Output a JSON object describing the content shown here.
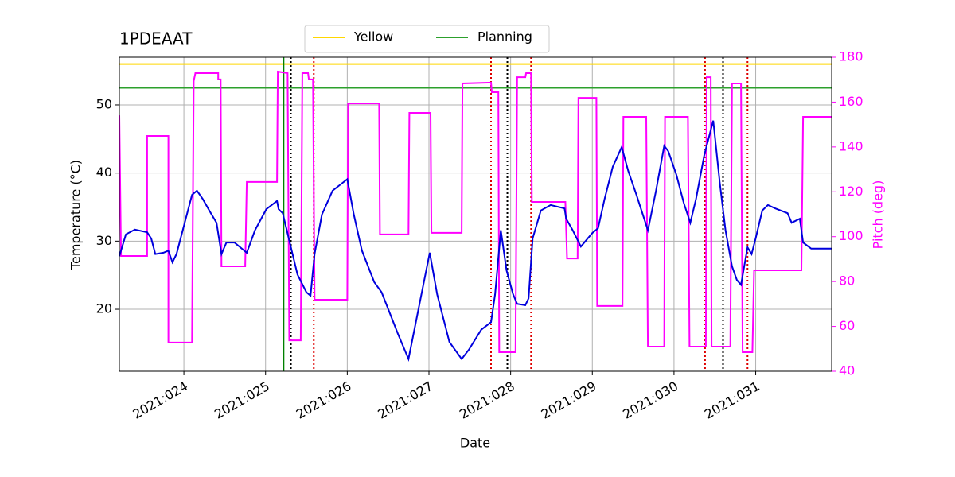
{
  "chart_data": {
    "type": "line",
    "title": "1PDEAAT",
    "x_label": "Date",
    "y_label": "Temperature (°C)",
    "y2_label": "Pitch (deg)",
    "y2_color": "#ff00ff",
    "xlim": [
      23.21,
      31.93
    ],
    "xticks": [
      {
        "value": 24,
        "label": "2021:024"
      },
      {
        "value": 25,
        "label": "2021:025"
      },
      {
        "value": 26,
        "label": "2021:026"
      },
      {
        "value": 27,
        "label": "2021:027"
      },
      {
        "value": 28,
        "label": "2021:028"
      },
      {
        "value": 29,
        "label": "2021:029"
      },
      {
        "value": 30,
        "label": "2021:030"
      },
      {
        "value": 31,
        "label": "2021:031"
      }
    ],
    "ylim": [
      10.9,
      57
    ],
    "yticks": [
      20,
      30,
      40,
      50
    ],
    "y2lim": [
      40,
      180
    ],
    "y2ticks": [
      40,
      60,
      80,
      100,
      120,
      140,
      160,
      180
    ],
    "grid": true,
    "legend": "top",
    "hlines": [
      {
        "name": "Yellow",
        "value": 56,
        "color": "#ffd700"
      },
      {
        "name": "Planning",
        "value": 52.5,
        "color": "#2ca02c"
      }
    ],
    "vlines": [
      {
        "x": 25.22,
        "color": "#008000",
        "style": "solid"
      },
      {
        "x": 25.31,
        "color": "#000000",
        "style": "dotted"
      },
      {
        "x": 27.96,
        "color": "#000000",
        "style": "dotted"
      },
      {
        "x": 30.6,
        "color": "#000000",
        "style": "dotted"
      },
      {
        "x": 25.59,
        "color": "#dd0000",
        "style": "dotted"
      },
      {
        "x": 27.76,
        "color": "#dd0000",
        "style": "dotted"
      },
      {
        "x": 28.25,
        "color": "#dd0000",
        "style": "dotted"
      },
      {
        "x": 30.38,
        "color": "#dd0000",
        "style": "dotted"
      },
      {
        "x": 30.9,
        "color": "#dd0000",
        "style": "dotted"
      }
    ],
    "series": [
      {
        "color": "#ff00ff",
        "axis": "y2",
        "x": [
          23.21,
          23.23,
          23.55,
          23.55,
          23.81,
          23.81,
          24.1,
          24.12,
          24.14,
          24.42,
          24.42,
          24.45,
          24.46,
          24.75,
          24.77,
          25.14,
          25.15,
          25.27,
          25.29,
          25.43,
          25.45,
          25.52,
          25.53,
          25.58,
          25.6,
          26.0,
          26.01,
          26.39,
          26.4,
          26.75,
          26.76,
          27.02,
          27.03,
          27.4,
          27.41,
          27.76,
          27.77,
          27.85,
          27.86,
          28.06,
          28.08,
          28.18,
          28.19,
          28.25,
          28.26,
          28.67,
          28.69,
          28.82,
          28.83,
          29.05,
          29.06,
          29.37,
          29.38,
          29.66,
          29.68,
          29.88,
          29.89,
          30.17,
          30.19,
          30.39,
          30.4,
          30.45,
          30.46,
          30.69,
          30.71,
          30.82,
          30.84,
          30.96,
          30.98,
          31.56,
          31.58,
          31.93
        ],
        "values": [
          154.1,
          91.4,
          91.4,
          144.9,
          144.9,
          52.8,
          52.8,
          169.4,
          172.9,
          172.9,
          170.1,
          170.1,
          86.8,
          86.8,
          124.4,
          124.4,
          173.6,
          172.9,
          53.8,
          53.8,
          172.9,
          172.9,
          170.1,
          170.1,
          71.9,
          71.9,
          159.4,
          159.4,
          101,
          101,
          155.2,
          155.2,
          101.7,
          101.7,
          168.3,
          168.7,
          164.4,
          164.4,
          48.5,
          48.5,
          171.1,
          171.1,
          172.9,
          172.9,
          115.5,
          115.5,
          90.3,
          90.3,
          161.9,
          161.9,
          69.1,
          69.1,
          153.4,
          153.4,
          51,
          51,
          153.4,
          153.4,
          51,
          51,
          171.1,
          171.1,
          51,
          51,
          168.3,
          168.3,
          48.5,
          48.5,
          85,
          85,
          153.4,
          153.4
        ]
      },
      {
        "color": "#0000dd",
        "x": [
          23.21,
          23.29,
          23.4,
          23.55,
          23.6,
          23.65,
          23.75,
          23.81,
          23.86,
          23.91,
          24.01,
          24.1,
          24.16,
          24.23,
          24.33,
          24.4,
          24.46,
          24.52,
          24.62,
          24.77,
          24.87,
          25.01,
          25.14,
          25.16,
          25.21,
          25.26,
          25.33,
          25.39,
          25.5,
          25.55,
          25.6,
          25.69,
          25.82,
          26.0,
          26.08,
          26.18,
          26.33,
          26.42,
          26.62,
          26.75,
          26.86,
          27.01,
          27.1,
          27.25,
          27.4,
          27.49,
          27.64,
          27.76,
          27.81,
          27.88,
          27.95,
          28.03,
          28.08,
          28.18,
          28.22,
          28.27,
          28.37,
          28.49,
          28.66,
          28.68,
          28.76,
          28.86,
          29.0,
          29.07,
          29.15,
          29.25,
          29.36,
          29.44,
          29.54,
          29.68,
          29.7,
          29.78,
          29.88,
          29.93,
          30.03,
          30.12,
          30.2,
          30.27,
          30.37,
          30.48,
          30.56,
          30.63,
          30.71,
          30.77,
          30.82,
          30.9,
          30.95,
          31.0,
          31.08,
          31.15,
          31.24,
          31.39,
          31.44,
          31.54,
          31.58,
          31.68,
          31.88,
          31.93
        ],
        "values": [
          27.8,
          31.0,
          31.7,
          31.3,
          30.4,
          28.1,
          28.3,
          28.6,
          26.9,
          28.1,
          32.7,
          36.8,
          37.4,
          36.2,
          34.1,
          32.7,
          28.1,
          29.8,
          29.8,
          28.3,
          31.6,
          34.7,
          35.9,
          34.7,
          34.1,
          31.6,
          28.1,
          25.1,
          22.5,
          22.0,
          28.1,
          33.9,
          37.4,
          39.1,
          33.9,
          28.6,
          24.0,
          22.5,
          16.4,
          12.7,
          19.3,
          28.3,
          22.2,
          15.2,
          12.7,
          14.1,
          17.0,
          18.1,
          22.2,
          31.6,
          25.7,
          22.2,
          20.8,
          20.6,
          21.6,
          30.4,
          34.5,
          35.3,
          34.8,
          33.3,
          31.6,
          29.2,
          31.2,
          31.9,
          36.2,
          40.9,
          43.8,
          40.3,
          36.8,
          31.6,
          32.7,
          37.4,
          44.0,
          43.2,
          39.7,
          35.6,
          32.7,
          36.2,
          42.6,
          47.7,
          38.6,
          31.6,
          26.3,
          24.3,
          23.6,
          29.1,
          28.1,
          30.4,
          34.5,
          35.3,
          34.8,
          34.1,
          32.7,
          33.3,
          29.8,
          28.9,
          28.9,
          28.9
        ]
      }
    ]
  }
}
